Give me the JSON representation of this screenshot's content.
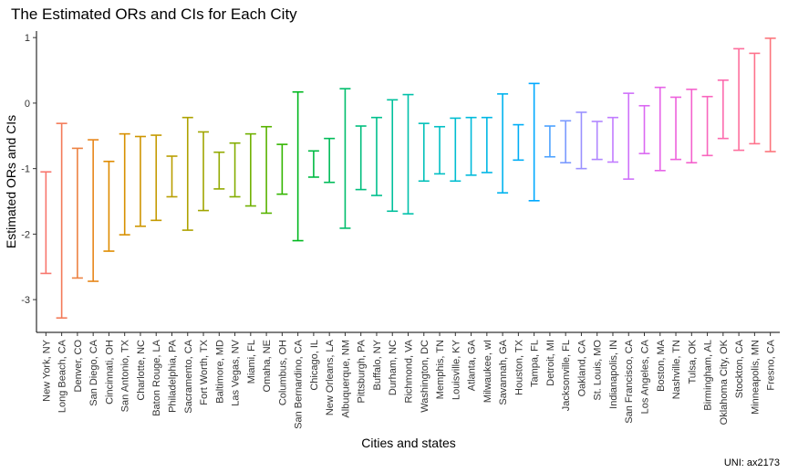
{
  "chart_data": {
    "type": "errorbar",
    "title": "The Estimated ORs and CIs for Each City",
    "xlabel": "Cities and states",
    "ylabel": "Estimated ORs and CIs",
    "caption": "UNI: ax2173",
    "ylim": [
      -3.5,
      1.1
    ],
    "yticks": [
      1,
      0,
      -1,
      -2,
      -3
    ],
    "ytick_labels": [
      "1",
      "0",
      "-1",
      "-2",
      "-3"
    ],
    "grid": false,
    "legend": "none",
    "categories": [
      "New York, NY",
      "Long Beach, CA",
      "Denver, CO",
      "San Diego, CA",
      "Cincinnati, OH",
      "San Antonio, TX",
      "Charlotte, NC",
      "Baton Rouge, LA",
      "Philadelphia, PA",
      "Sacramento, CA",
      "Fort Worth, TX",
      "Baltimore, MD",
      "Las Vegas, NV",
      "Miami, FL",
      "Omaha, NE",
      "Columbus, OH",
      "San Bernardino, CA",
      "Chicago, IL",
      "New Orleans, LA",
      "Albuquerque, NM",
      "Pittsburgh, PA",
      "Buffalo, NY",
      "Durham, NC",
      "Richmond, VA",
      "Washington, DC",
      "Memphis, TN",
      "Louisville, KY",
      "Atlanta, GA",
      "Milwaukee, wI",
      "Savannah, GA",
      "Houston, TX",
      "Tampa, FL",
      "Detroit, MI",
      "Jacksonville, FL",
      "Oakland, CA",
      "St. Louis, MO",
      "Indianapolis, IN",
      "San Francisco, CA",
      "Los Angeles, CA",
      "Boston, MA",
      "Nashville, TN",
      "Tulsa, OK",
      "Birmingham, AL",
      "Oklahoma City, OK",
      "Stockton, CA",
      "Minneapolis, MN",
      "Fresno, CA"
    ],
    "lower": [
      -2.6,
      -3.28,
      -2.67,
      -2.72,
      -2.26,
      -2.01,
      -1.88,
      -1.79,
      -1.43,
      -1.94,
      -1.64,
      -1.31,
      -1.43,
      -1.57,
      -1.68,
      -1.39,
      -2.1,
      -1.13,
      -1.21,
      -1.91,
      -1.32,
      -1.41,
      -1.65,
      -1.69,
      -1.19,
      -1.08,
      -1.19,
      -1.1,
      -1.06,
      -1.37,
      -0.87,
      -1.49,
      -0.82,
      -0.91,
      -1.0,
      -0.86,
      -0.9,
      -1.16,
      -0.77,
      -1.03,
      -0.86,
      -0.91,
      -0.8,
      -0.54,
      -0.72,
      -0.62,
      -0.74
    ],
    "upper": [
      -1.05,
      -0.31,
      -0.69,
      -0.56,
      -0.89,
      -0.47,
      -0.51,
      -0.49,
      -0.81,
      -0.22,
      -0.44,
      -0.75,
      -0.61,
      -0.47,
      -0.36,
      -0.63,
      0.17,
      -0.73,
      -0.54,
      0.22,
      -0.35,
      -0.22,
      0.05,
      0.13,
      -0.31,
      -0.36,
      -0.23,
      -0.22,
      -0.22,
      0.14,
      -0.33,
      0.3,
      -0.35,
      -0.27,
      -0.14,
      -0.28,
      -0.22,
      0.15,
      -0.04,
      0.24,
      0.09,
      0.21,
      0.1,
      0.35,
      0.83,
      0.76,
      0.99
    ],
    "colors": [
      "#F8766D",
      "#F37B59",
      "#ED8141",
      "#E7861B",
      "#DF8C00",
      "#D79000",
      "#CE9500",
      "#C49A00",
      "#B99E00",
      "#AEA200",
      "#A1A500",
      "#93AA00",
      "#83AD00",
      "#70B000",
      "#58B300",
      "#33B600",
      "#00B81F",
      "#00BA42",
      "#00BC59",
      "#00BD6C",
      "#00BE7D",
      "#00C08D",
      "#00C09C",
      "#00C1AA",
      "#00C0B8",
      "#00BFC4",
      "#00BDD0",
      "#00BBDB",
      "#00B7E5",
      "#00B3EE",
      "#00AEF6",
      "#00A9FF",
      "#4DA2FF",
      "#7B9AFF",
      "#9A91FF",
      "#B086FF",
      "#C17CFF",
      "#CF71FA",
      "#DB69F2",
      "#E664E8",
      "#EE61DC",
      "#F462CD",
      "#F966BE",
      "#FC6AAE",
      "#FE6E9D",
      "#FE728C",
      "#FC757C"
    ]
  }
}
